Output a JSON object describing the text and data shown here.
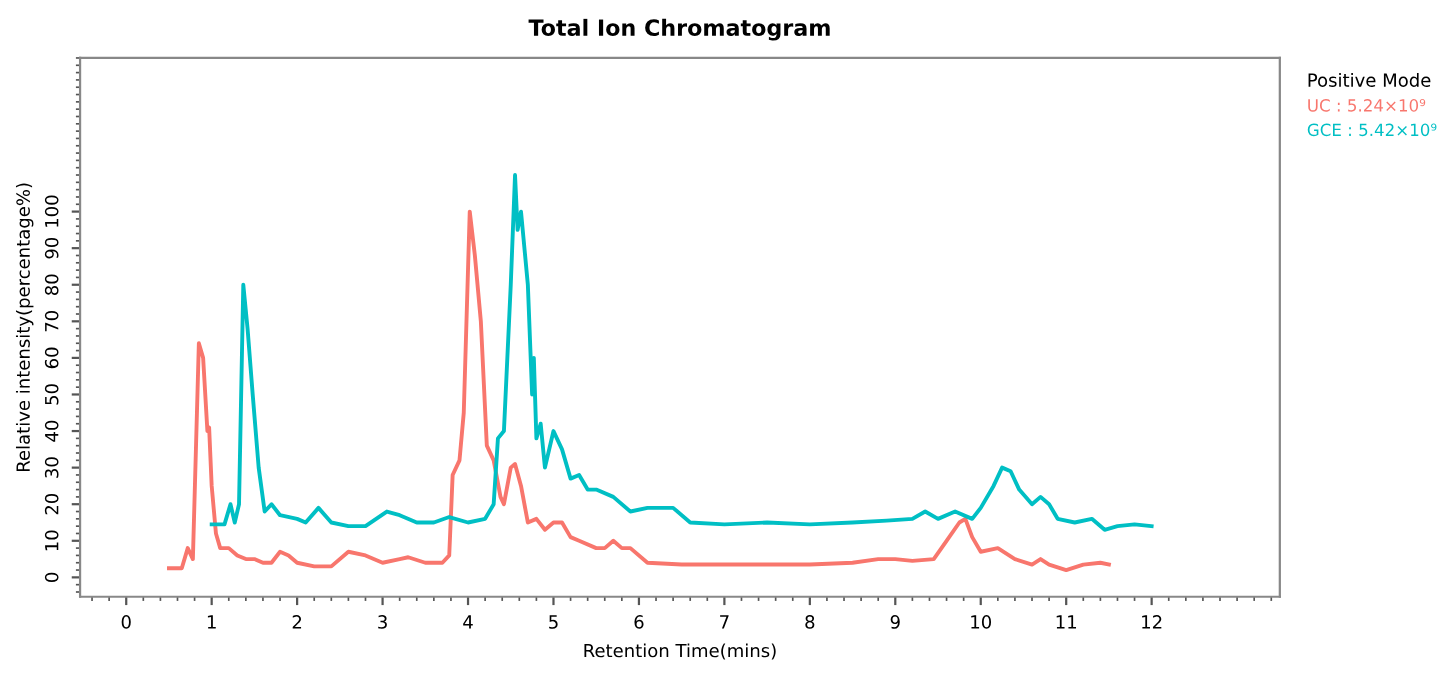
{
  "chart_data": {
    "type": "line",
    "title": "Total Ion Chromatogram",
    "xlabel": "Retention Time(mins)",
    "ylabel": "Relative intensity(percentage%)",
    "legend_title": "Positive Mode",
    "legend": "right",
    "grid": false,
    "marker": "none",
    "line_style": "solid",
    "xlim": [
      -0.54,
      13.5
    ],
    "ylim": [
      -5.3,
      142
    ],
    "xticks": [
      0,
      1,
      2,
      3,
      4,
      5,
      6,
      7,
      8,
      9,
      10,
      11,
      12
    ],
    "yticks": [
      0,
      10,
      20,
      30,
      40,
      50,
      60,
      70,
      80,
      90,
      100
    ],
    "series": [
      {
        "name": "UC : 5.24×10⁹",
        "color": "#f8766d",
        "x": [
          0.5,
          0.65,
          0.72,
          0.78,
          0.85,
          0.9,
          0.95,
          0.97,
          1.0,
          1.05,
          1.1,
          1.2,
          1.3,
          1.4,
          1.5,
          1.6,
          1.7,
          1.8,
          1.9,
          2.0,
          2.2,
          2.4,
          2.6,
          2.8,
          3.0,
          3.2,
          3.3,
          3.5,
          3.7,
          3.78,
          3.82,
          3.9,
          3.95,
          4.02,
          4.08,
          4.15,
          4.22,
          4.3,
          4.38,
          4.42,
          4.5,
          4.55,
          4.62,
          4.7,
          4.8,
          4.9,
          5.0,
          5.1,
          5.2,
          5.3,
          5.5,
          5.6,
          5.7,
          5.8,
          5.9,
          6.1,
          6.5,
          7.0,
          7.5,
          8.0,
          8.5,
          8.8,
          9.0,
          9.2,
          9.45,
          9.6,
          9.75,
          9.82,
          9.9,
          10.0,
          10.2,
          10.4,
          10.6,
          10.7,
          10.8,
          11.0,
          11.2,
          11.4,
          11.5
        ],
        "values": [
          2.5,
          2.5,
          8,
          5,
          64,
          60,
          40,
          41,
          25,
          12,
          8,
          8,
          6,
          5,
          5,
          4,
          4,
          7,
          6,
          4,
          3,
          3,
          7,
          6,
          4,
          5,
          5.5,
          4,
          4,
          6,
          28,
          32,
          45,
          100,
          88,
          70,
          36,
          32,
          22,
          20,
          30,
          31,
          25,
          15,
          16,
          13,
          15,
          15,
          11,
          10,
          8,
          8,
          10,
          8,
          8,
          4,
          3.5,
          3.5,
          3.5,
          3.5,
          4,
          5,
          5,
          4.5,
          5,
          10,
          15,
          16,
          11,
          7,
          8,
          5,
          3.5,
          5,
          3.5,
          2,
          3.5,
          4,
          3.5
        ]
      },
      {
        "name": "GCE : 5.42×10⁹",
        "color": "#00bfc4",
        "x": [
          1.0,
          1.15,
          1.22,
          1.27,
          1.32,
          1.37,
          1.42,
          1.48,
          1.55,
          1.62,
          1.7,
          1.8,
          2.0,
          2.1,
          2.25,
          2.4,
          2.6,
          2.8,
          3.05,
          3.2,
          3.4,
          3.6,
          3.78,
          4.0,
          4.2,
          4.3,
          4.35,
          4.42,
          4.5,
          4.55,
          4.58,
          4.62,
          4.7,
          4.75,
          4.77,
          4.8,
          4.85,
          4.9,
          5.0,
          5.1,
          5.2,
          5.3,
          5.4,
          5.5,
          5.7,
          5.9,
          6.1,
          6.4,
          6.6,
          7.0,
          7.5,
          8.0,
          8.5,
          8.9,
          9.2,
          9.35,
          9.5,
          9.7,
          9.9,
          10.0,
          10.15,
          10.25,
          10.35,
          10.45,
          10.6,
          10.7,
          10.8,
          10.9,
          11.1,
          11.3,
          11.45,
          11.6,
          11.8,
          12.0
        ],
        "values": [
          14.5,
          14.5,
          20,
          15,
          20,
          80,
          68,
          50,
          30,
          18,
          20,
          17,
          16,
          15,
          19,
          15,
          14,
          14,
          18,
          17,
          15,
          15,
          16.5,
          15,
          16,
          20,
          38,
          40,
          80,
          110,
          95,
          100,
          80,
          50,
          60,
          38,
          42,
          30,
          40,
          35,
          27,
          28,
          24,
          24,
          22,
          18,
          19,
          19,
          15,
          14.5,
          15,
          14.5,
          15,
          15.5,
          16,
          18,
          16,
          18,
          16,
          19,
          25,
          30,
          29,
          24,
          20,
          22,
          20,
          16,
          15,
          16,
          13,
          14,
          14.5,
          14
        ]
      }
    ]
  }
}
